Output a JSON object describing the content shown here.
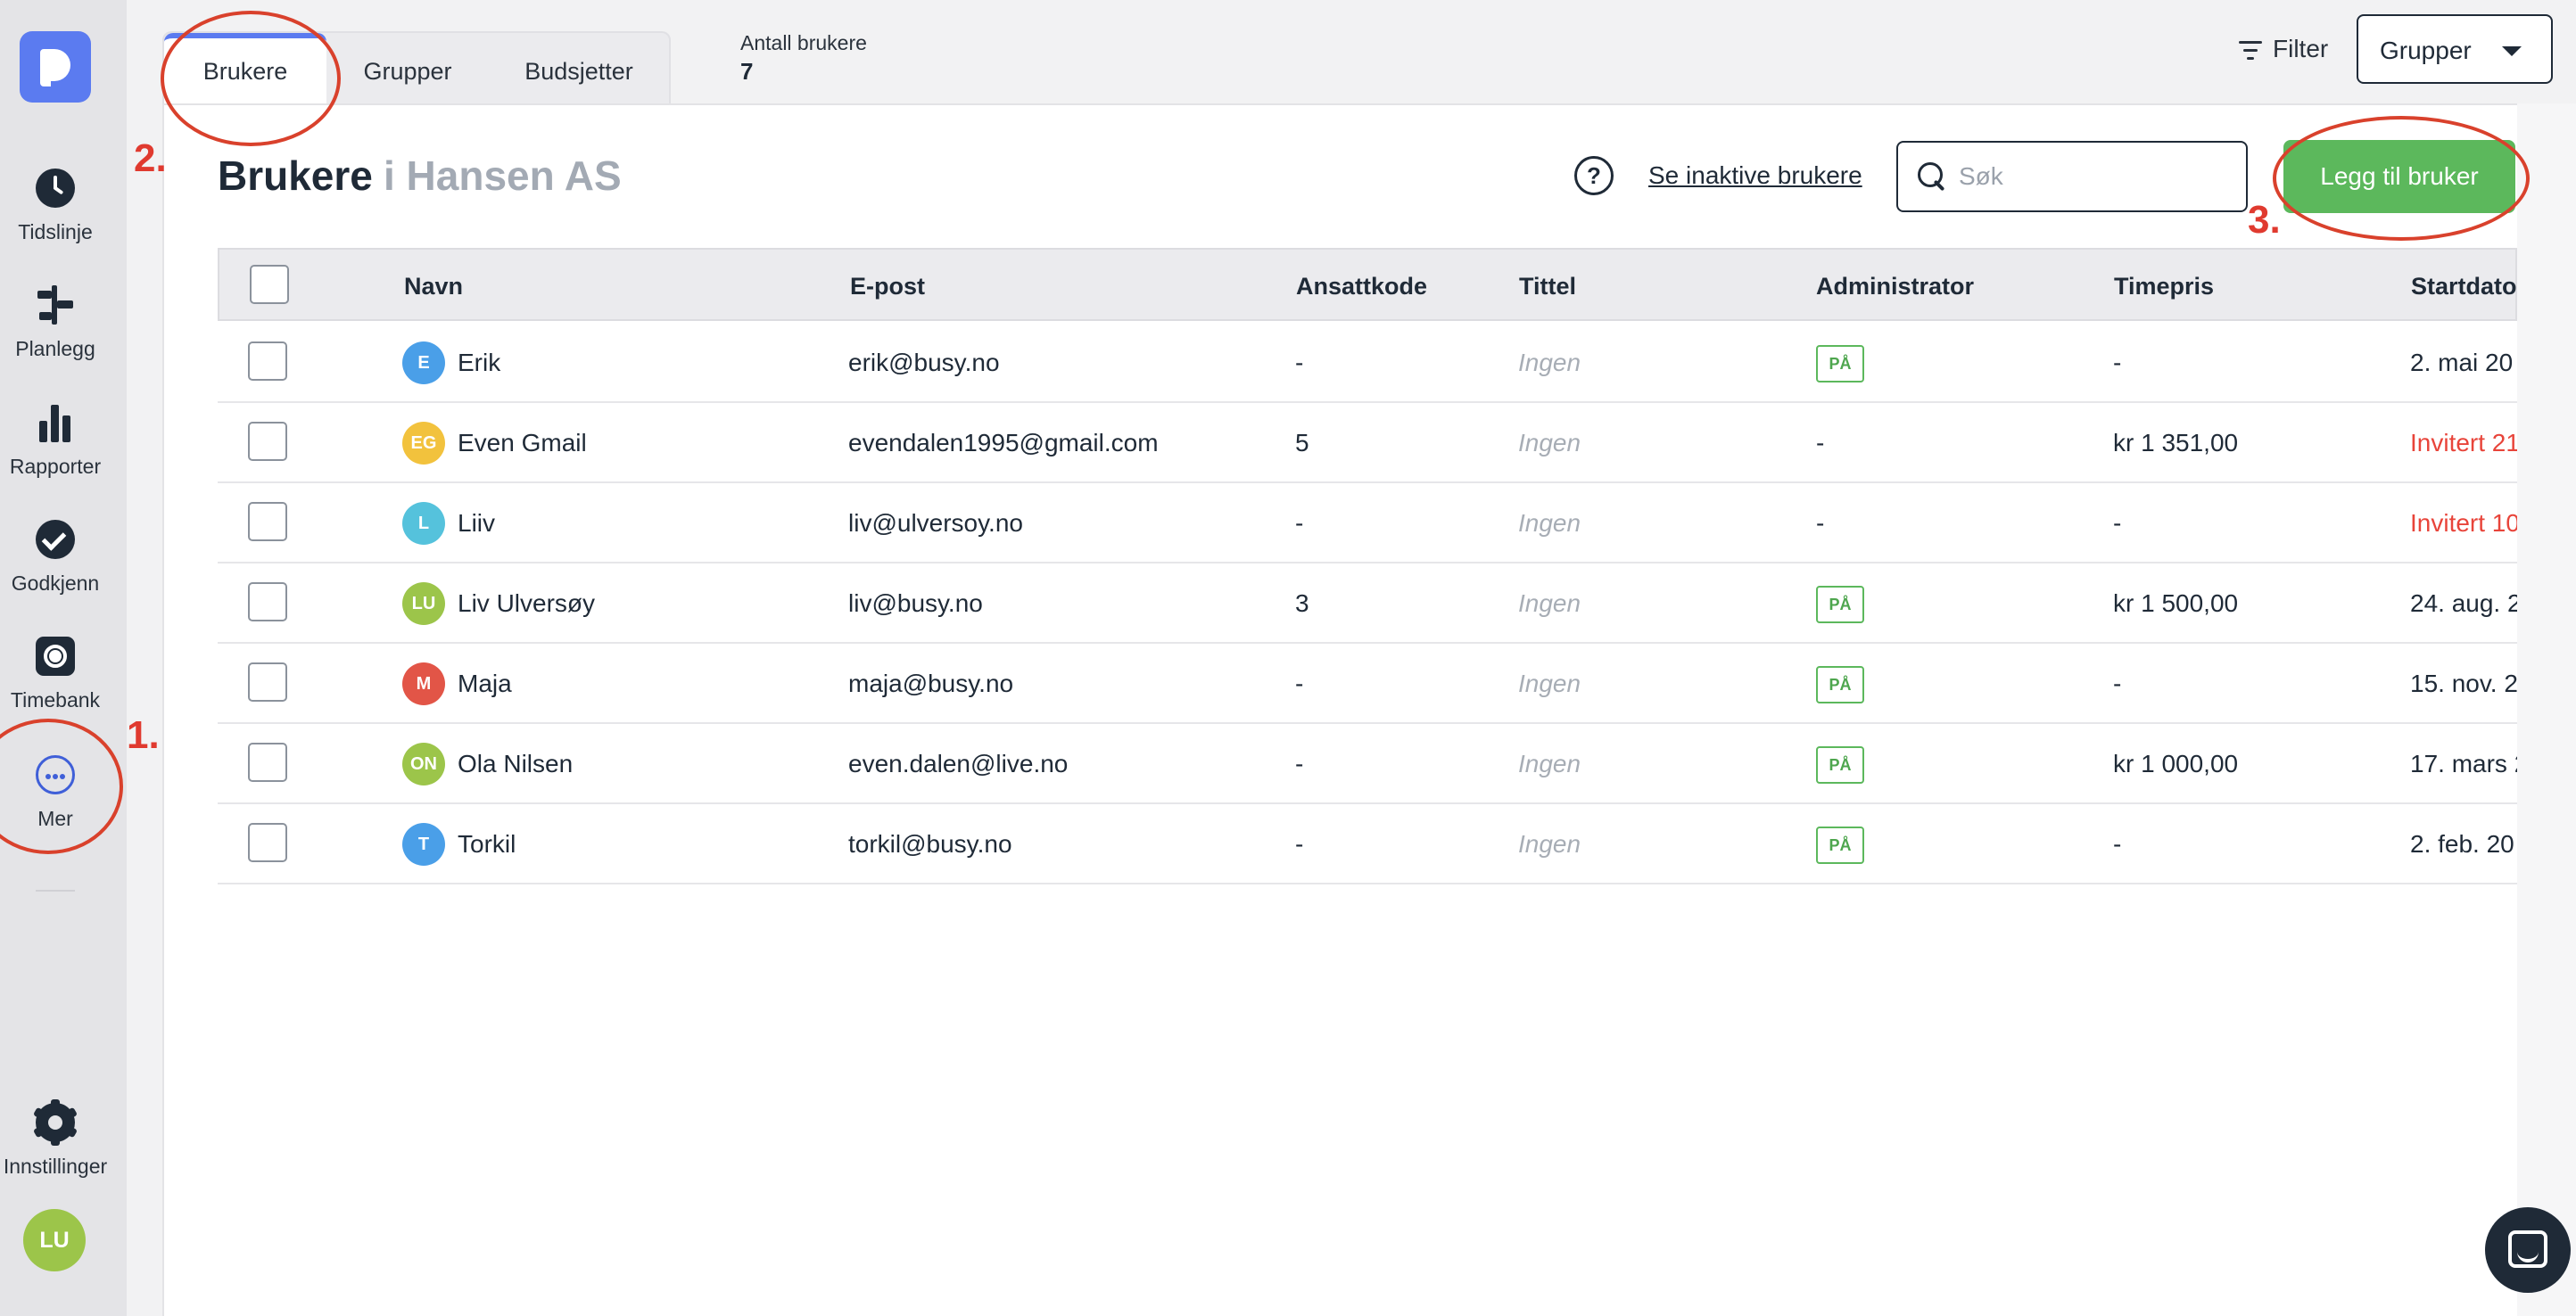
{
  "sidebar": {
    "items": [
      {
        "label": "Tidslinje",
        "icon": "clock-icon"
      },
      {
        "label": "Planlegg",
        "icon": "plan-icon"
      },
      {
        "label": "Rapporter",
        "icon": "bar-chart-icon"
      },
      {
        "label": "Godkjenn",
        "icon": "check-circle-icon"
      },
      {
        "label": "Timebank",
        "icon": "timebank-icon"
      },
      {
        "label": "Mer",
        "icon": "more-icon"
      },
      {
        "label": "Innstillinger",
        "icon": "gear-icon"
      }
    ],
    "user_initials": "LU"
  },
  "tabs": [
    "Brukere",
    "Grupper",
    "Budsjetter"
  ],
  "user_count": {
    "label": "Antall brukere",
    "value": "7"
  },
  "filter": {
    "label": "Filter"
  },
  "groups_select": {
    "value": "Grupper"
  },
  "page": {
    "title": "Brukere",
    "subtitle": "i Hansen AS",
    "help": "?",
    "inactive_link": "Se inaktive brukere",
    "search_placeholder": "Søk",
    "add_button": "Legg til bruker"
  },
  "table": {
    "columns": [
      "Navn",
      "E-post",
      "Ansattkode",
      "Tittel",
      "Administrator",
      "Timepris",
      "Startdato"
    ],
    "rows": [
      {
        "initials": "E",
        "avatar_color": "#4a9fe8",
        "name": "Erik",
        "email": "erik@busy.no",
        "code": "-",
        "title": "Ingen",
        "admin": "PÅ",
        "rate": "-",
        "start": "2. mai 20",
        "start_color": "normal"
      },
      {
        "initials": "EG",
        "avatar_color": "#f2c23d",
        "name": "Even Gmail",
        "email": "evendalen1995@gmail.com",
        "code": "5",
        "title": "Ingen",
        "admin": "-",
        "rate": "kr 1 351,00",
        "start": "Invitert 21",
        "start_color": "red"
      },
      {
        "initials": "L",
        "avatar_color": "#55c2dc",
        "name": "Liiv",
        "email": "liv@ulversoy.no",
        "code": "-",
        "title": "Ingen",
        "admin": "-",
        "rate": "-",
        "start": "Invitert 10",
        "start_color": "red"
      },
      {
        "initials": "LU",
        "avatar_color": "#9cc54a",
        "name": "Liv Ulversøy",
        "email": "liv@busy.no",
        "code": "3",
        "title": "Ingen",
        "admin": "PÅ",
        "rate": "kr 1 500,00",
        "start": "24. aug. 2",
        "start_color": "normal"
      },
      {
        "initials": "M",
        "avatar_color": "#e25547",
        "name": "Maja",
        "email": "maja@busy.no",
        "code": "-",
        "title": "Ingen",
        "admin": "PÅ",
        "rate": "-",
        "start": "15. nov. 2",
        "start_color": "normal"
      },
      {
        "initials": "ON",
        "avatar_color": "#9cc54a",
        "name": "Ola Nilsen",
        "email": "even.dalen@live.no",
        "code": "-",
        "title": "Ingen",
        "admin": "PÅ",
        "rate": "kr 1 000,00",
        "start": "17. mars 2",
        "start_color": "normal"
      },
      {
        "initials": "T",
        "avatar_color": "#4a9fe8",
        "name": "Torkil",
        "email": "torkil@busy.no",
        "code": "-",
        "title": "Ingen",
        "admin": "PÅ",
        "rate": "-",
        "start": "2. feb. 20",
        "start_color": "normal"
      }
    ]
  },
  "annotations": [
    "1.",
    "2.",
    "3."
  ],
  "colors": {
    "accent": "#5b7bf0",
    "primary_button": "#5cb85c",
    "annotation": "#d9412c"
  }
}
